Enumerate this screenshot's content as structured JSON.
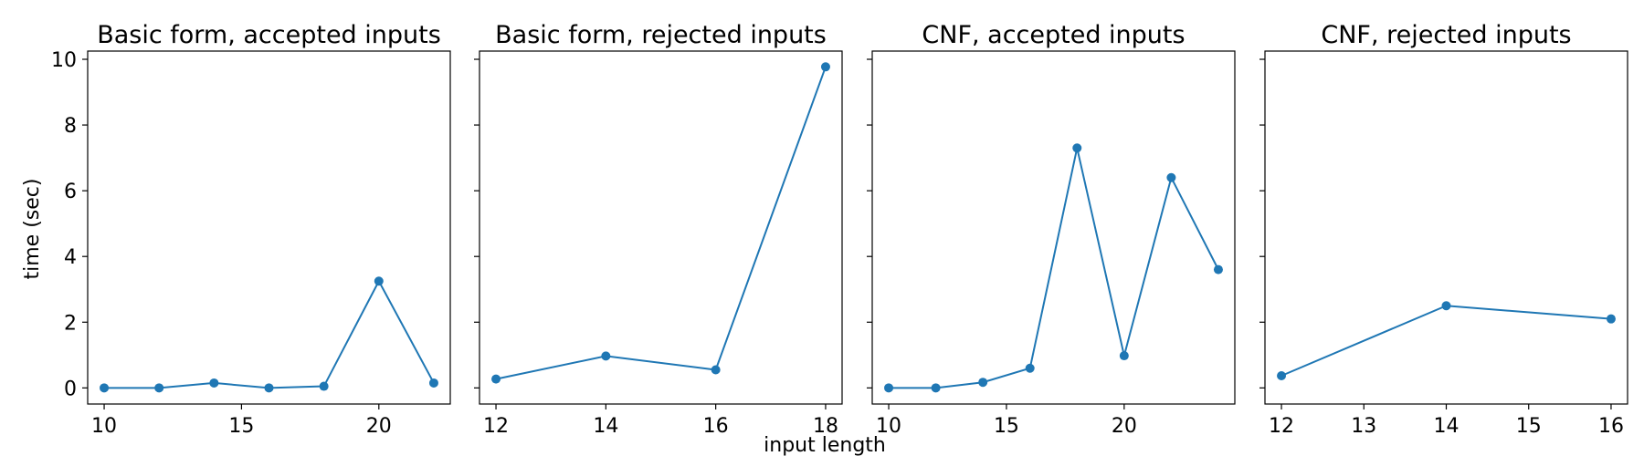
{
  "figure": {
    "ylabel": "time (sec)",
    "xlabel": "input length",
    "line_color": "#1f77b4"
  },
  "chart_data": [
    {
      "type": "line",
      "title": "Basic form, accepted inputs",
      "x": [
        10,
        12,
        14,
        16,
        18,
        20,
        22
      ],
      "y": [
        0.0,
        0.0,
        0.15,
        0.0,
        0.05,
        3.25,
        0.15
      ],
      "xlim": [
        9.4,
        22.6
      ],
      "ylim": [
        -0.49,
        10.25
      ],
      "xticks": [
        10,
        15,
        20
      ],
      "yticks": [
        0,
        2,
        4,
        6,
        8,
        10
      ]
    },
    {
      "type": "line",
      "title": "Basic form, rejected inputs",
      "x": [
        12,
        14,
        16,
        18
      ],
      "y": [
        0.27,
        0.97,
        0.55,
        9.77
      ],
      "xlim": [
        11.7,
        18.3
      ],
      "ylim": [
        -0.49,
        10.25
      ],
      "xticks": [
        12,
        14,
        16,
        18
      ],
      "yticks": [
        0,
        2,
        4,
        6,
        8,
        10
      ]
    },
    {
      "type": "line",
      "title": "CNF, accepted inputs",
      "x": [
        10,
        12,
        14,
        16,
        18,
        20,
        22,
        24
      ],
      "y": [
        0.0,
        0.0,
        0.17,
        0.6,
        7.3,
        0.98,
        6.4,
        3.6
      ],
      "xlim": [
        9.3,
        24.7
      ],
      "ylim": [
        -0.49,
        10.25
      ],
      "xticks": [
        10,
        15,
        20
      ],
      "yticks": [
        0,
        2,
        4,
        6,
        8,
        10
      ]
    },
    {
      "type": "line",
      "title": "CNF, rejected inputs",
      "x": [
        12,
        14,
        16
      ],
      "y": [
        0.37,
        2.5,
        2.1
      ],
      "xlim": [
        11.8,
        16.2
      ],
      "ylim": [
        -0.49,
        10.25
      ],
      "xticks": [
        12,
        13,
        14,
        15,
        16
      ],
      "yticks": [
        0,
        2,
        4,
        6,
        8,
        10
      ]
    }
  ]
}
